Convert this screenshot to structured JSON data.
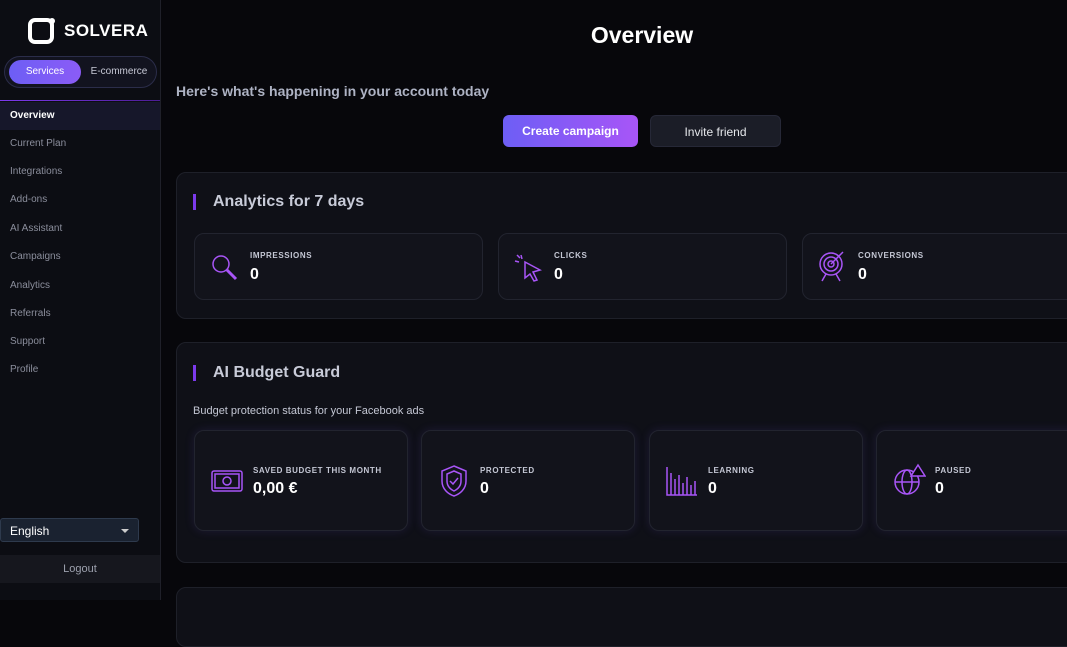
{
  "sidebar": {
    "brand": "SOLVERA",
    "tabs": [
      "Services",
      "E-commerce"
    ],
    "nav": [
      "Overview",
      "Current Plan",
      "Integrations",
      "Add-ons",
      "AI Assistant",
      "Campaigns",
      "Analytics",
      "Referrals",
      "Support",
      "Profile"
    ],
    "language": "English",
    "logout": "Logout"
  },
  "header": {
    "title": "Overview",
    "subtitle": "Here's what's happening in your account today"
  },
  "actions": [
    "Create campaign",
    "Invite friend"
  ],
  "analytics": {
    "title": "Analytics for 7 days",
    "stats": [
      {
        "label": "IMPRESSIONS",
        "value": 0
      },
      {
        "label": "CLICKS",
        "value": 0
      },
      {
        "label": "CONVERSIONS",
        "value": 0
      }
    ]
  },
  "budget_guard": {
    "title": "AI Budget Guard",
    "description": "Budget protection status for your Facebook ads",
    "stats": [
      {
        "label": "SAVED BUDGET THIS MONTH",
        "value": "0,00 €"
      },
      {
        "label": "PROTECTED",
        "value": 0
      },
      {
        "label": "LEARNING",
        "value": 0
      },
      {
        "label": "PAUSED",
        "value": 0
      }
    ]
  }
}
